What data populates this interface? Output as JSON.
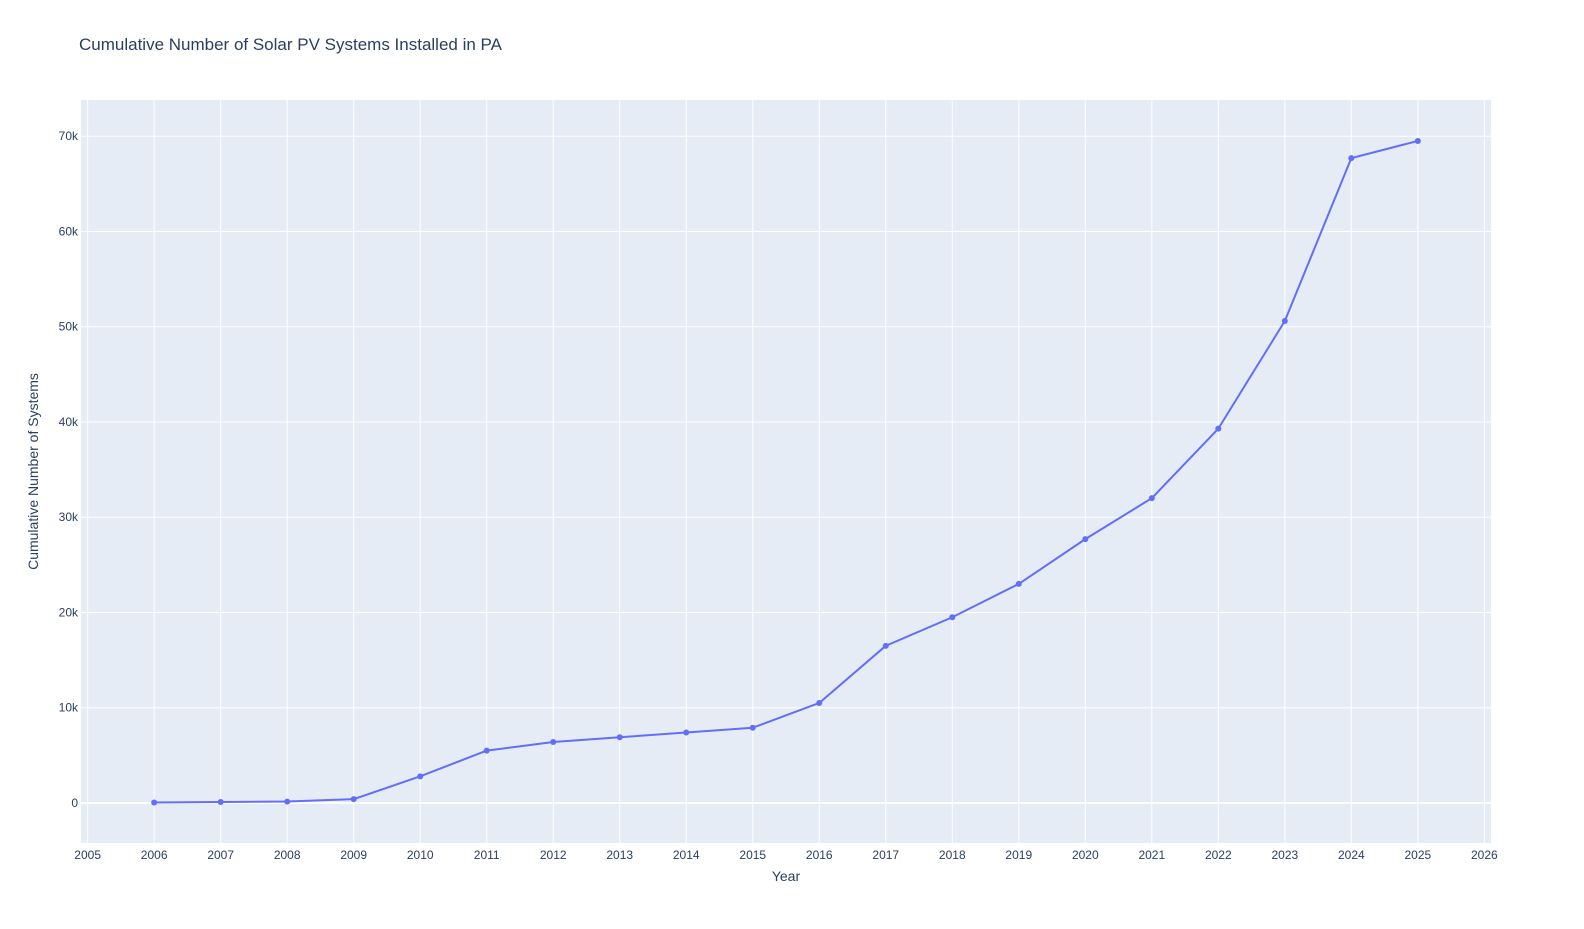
{
  "colors": {
    "plot_bg": "#e5ecf6",
    "grid": "#ffffff",
    "line": "#636efa",
    "text": "#2a3f5f"
  },
  "chart_data": {
    "type": "line",
    "title": "Cumulative Number of Solar PV Systems Installed in PA",
    "xlabel": "Year",
    "ylabel": "Cumulative Number of Systems",
    "xlim": [
      2004.9,
      2026.1
    ],
    "ylim": [
      -4200,
      73800
    ],
    "x_ticks": [
      2005,
      2006,
      2007,
      2008,
      2009,
      2010,
      2011,
      2012,
      2013,
      2014,
      2015,
      2016,
      2017,
      2018,
      2019,
      2020,
      2021,
      2022,
      2023,
      2024,
      2025,
      2026
    ],
    "x_tick_labels": [
      "2005",
      "2006",
      "2007",
      "2008",
      "2009",
      "2010",
      "2011",
      "2012",
      "2013",
      "2014",
      "2015",
      "2016",
      "2017",
      "2018",
      "2019",
      "2020",
      "2021",
      "2022",
      "2023",
      "2024",
      "2025",
      "2026"
    ],
    "y_ticks": [
      0,
      10000,
      20000,
      30000,
      40000,
      50000,
      60000,
      70000
    ],
    "y_tick_labels": [
      "0",
      "10k",
      "20k",
      "30k",
      "40k",
      "50k",
      "60k",
      "70k"
    ],
    "grid": true,
    "mode": "lines+markers",
    "series": [
      {
        "x": [
          2006,
          2007,
          2008,
          2009,
          2010,
          2011,
          2012,
          2013,
          2014,
          2015,
          2016,
          2017,
          2018,
          2019,
          2020,
          2021,
          2022,
          2023,
          2024,
          2025
        ],
        "y": [
          50,
          100,
          150,
          400,
          2800,
          5500,
          6400,
          6900,
          7400,
          7900,
          10500,
          16500,
          19500,
          23000,
          27700,
          32000,
          39300,
          50600,
          67700,
          69500
        ]
      }
    ]
  }
}
